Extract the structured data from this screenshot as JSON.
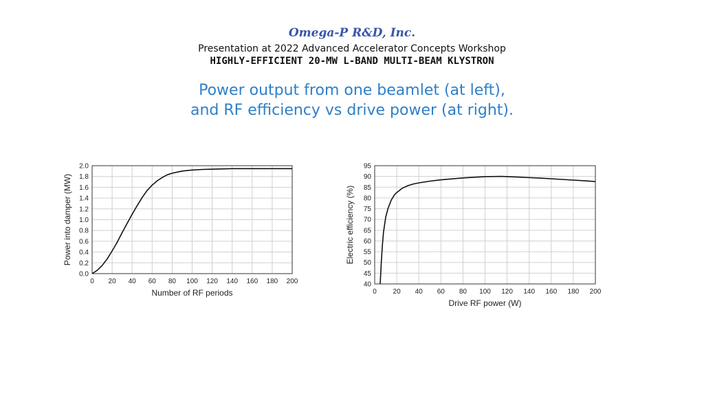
{
  "header": {
    "company": "Omega-P R&D, Inc.",
    "event": "Presentation at 2022 Advanced Accelerator Concepts Workshop",
    "project": "HIGHLY-EFFICIENT 20-MW L-BAND MULTI-BEAM KLYSTRON"
  },
  "slide": {
    "headline_line1": "Power output from one beamlet (at left),",
    "headline_line2": "and RF efficiency vs drive power (at right)."
  },
  "chart_data": [
    {
      "type": "line",
      "title": "",
      "xlabel": "Number of RF periods",
      "ylabel": "Power into damper (MW)",
      "xlim": [
        0,
        200
      ],
      "ylim": [
        0,
        2.0
      ],
      "xticks": [
        0,
        20,
        40,
        60,
        80,
        100,
        120,
        140,
        160,
        180,
        200
      ],
      "yticks": [
        0.0,
        0.2,
        0.4,
        0.6,
        0.8,
        1.0,
        1.2,
        1.4,
        1.6,
        1.8,
        2.0
      ],
      "ytick_labels": [
        "0.0",
        "0.2",
        "0.4",
        "0.6",
        "0.8",
        "1.0",
        "1.2",
        "1.4",
        "1.6",
        "1.8",
        "2.0"
      ],
      "grid": true,
      "series": [
        {
          "x": [
            0,
            5,
            10,
            15,
            20,
            25,
            30,
            35,
            40,
            45,
            50,
            55,
            60,
            65,
            70,
            75,
            80,
            90,
            100,
            110,
            120,
            130,
            140,
            160,
            180,
            200
          ],
          "y": [
            0.0,
            0.06,
            0.15,
            0.27,
            0.42,
            0.58,
            0.76,
            0.93,
            1.1,
            1.26,
            1.41,
            1.54,
            1.64,
            1.72,
            1.78,
            1.83,
            1.86,
            1.9,
            1.92,
            1.93,
            1.935,
            1.94,
            1.945,
            1.945,
            1.945,
            1.945
          ]
        }
      ]
    },
    {
      "type": "line",
      "title": "",
      "xlabel": "Drive RF power (W)",
      "ylabel": "Electric efficiency (%)",
      "xlim": [
        0,
        200
      ],
      "ylim": [
        40,
        95
      ],
      "xticks": [
        0,
        20,
        40,
        60,
        80,
        100,
        120,
        140,
        160,
        180,
        200
      ],
      "yticks": [
        40,
        45,
        50,
        55,
        60,
        65,
        70,
        75,
        80,
        85,
        90,
        95
      ],
      "ytick_labels": [
        "40",
        "45",
        "50",
        "55",
        "60",
        "65",
        "70",
        "75",
        "80",
        "85",
        "90",
        "95"
      ],
      "grid": true,
      "series": [
        {
          "x": [
            5,
            6,
            7,
            8,
            10,
            12,
            15,
            18,
            20,
            25,
            30,
            35,
            40,
            50,
            60,
            80,
            100,
            115,
            130,
            150,
            170,
            190,
            200
          ],
          "y": [
            40,
            50,
            58,
            64,
            71,
            75,
            79,
            81.5,
            82.5,
            84.5,
            85.7,
            86.5,
            87,
            87.8,
            88.4,
            89.3,
            89.9,
            90,
            89.7,
            89.2,
            88.6,
            88,
            87.6
          ]
        }
      ]
    }
  ]
}
